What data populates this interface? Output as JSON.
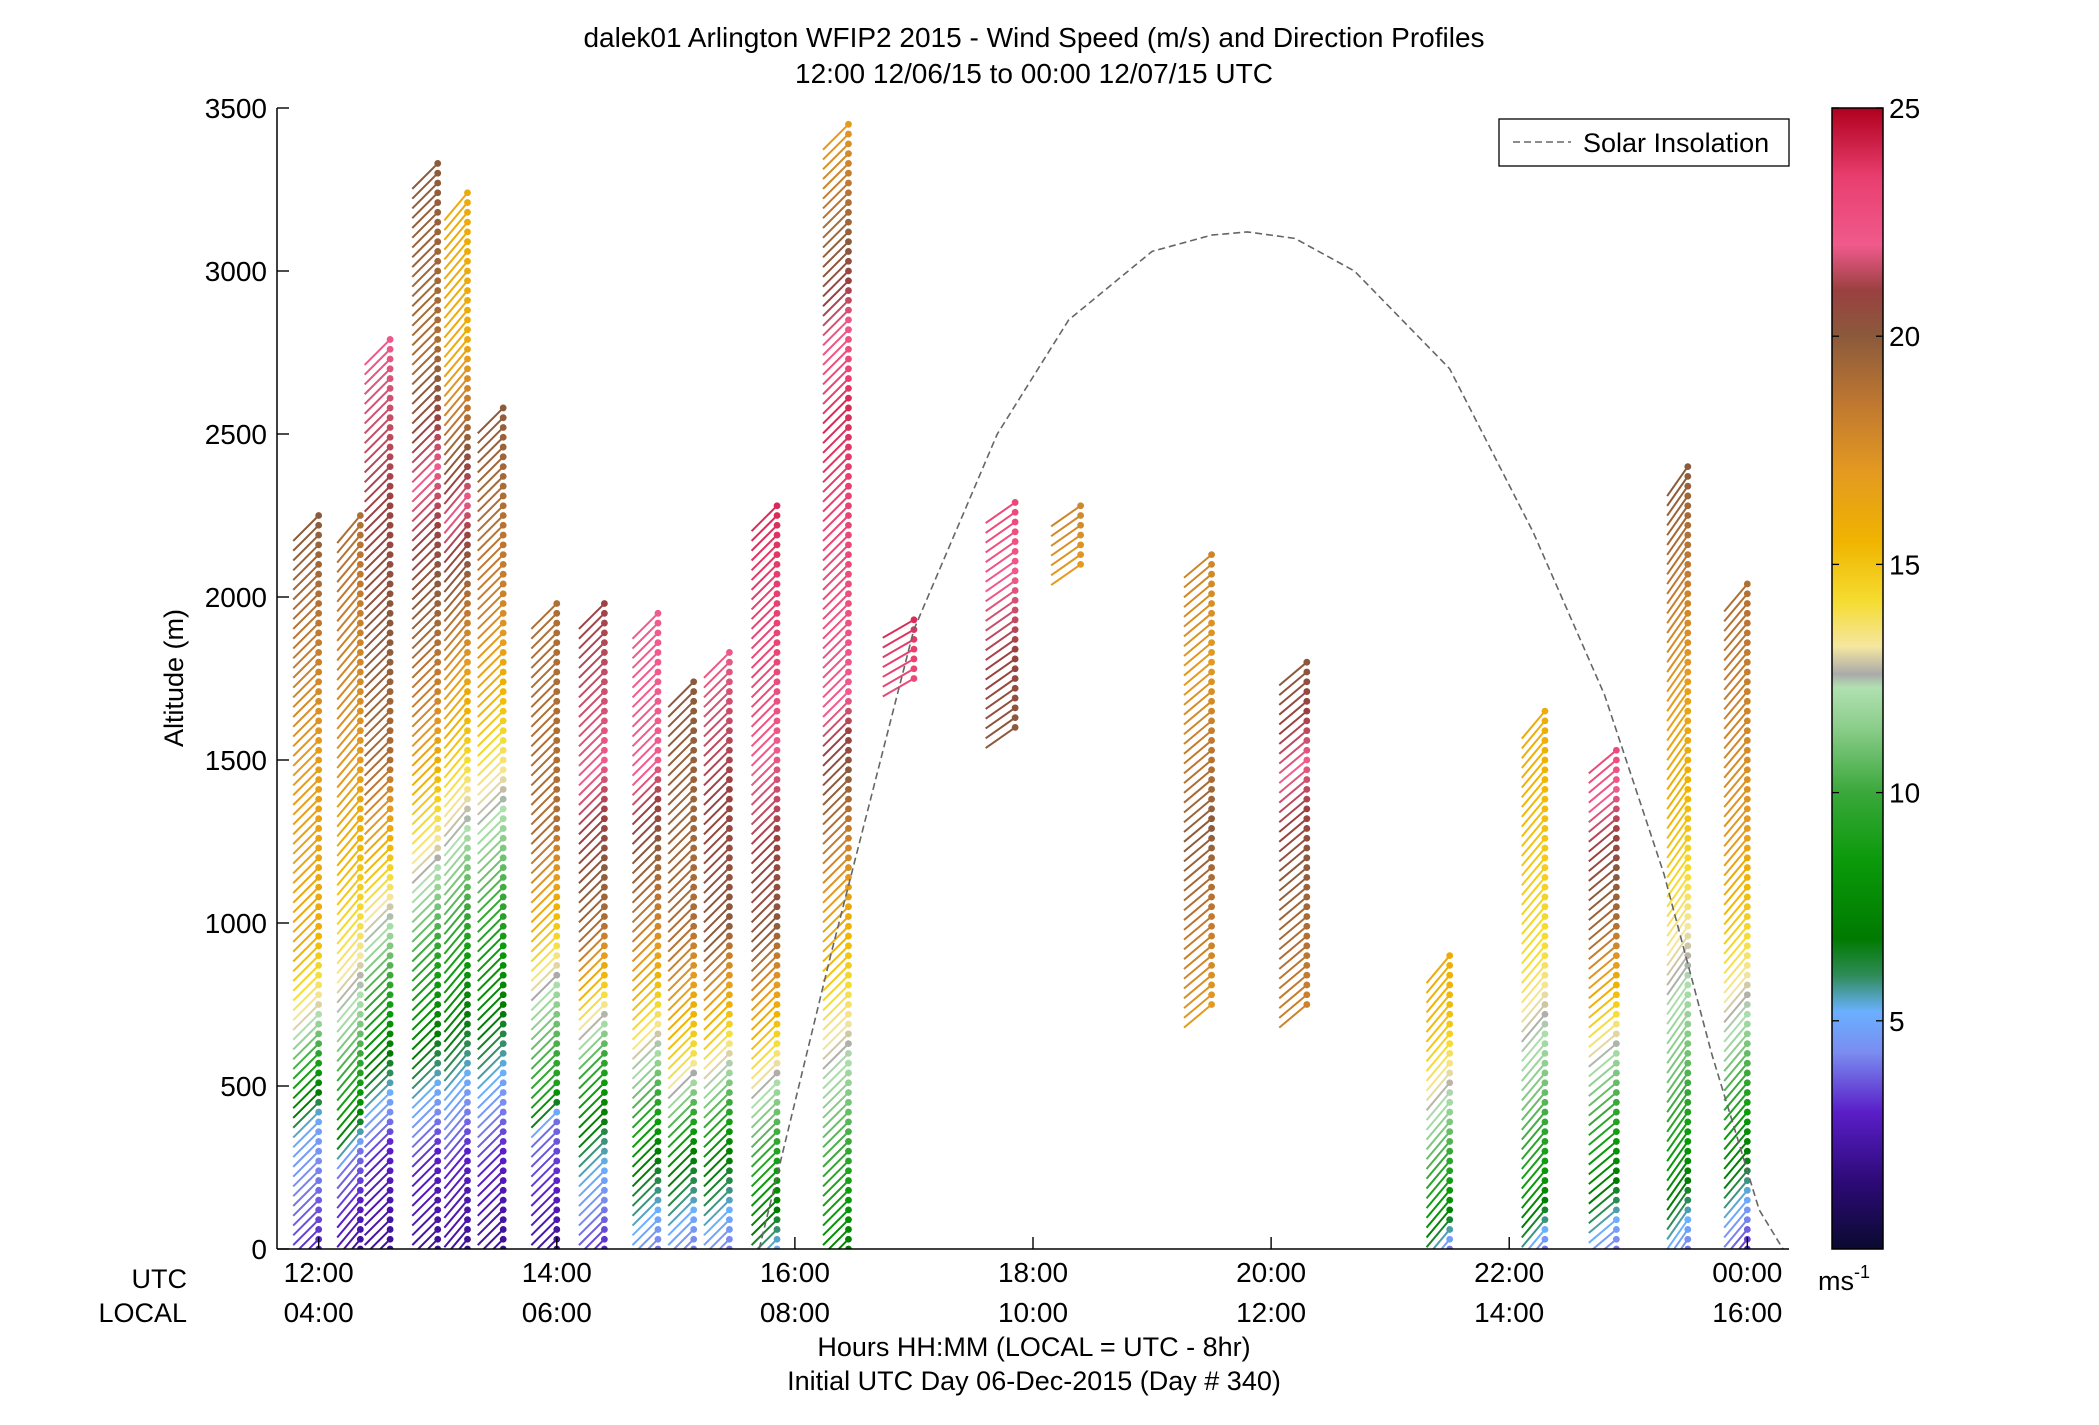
{
  "chart_data": {
    "type": "scatter",
    "plot_kind": "wind barb profiles (colored stick-and-dot vectors)",
    "title": "dalek01 Arlington WFIP2 2015 - Wind Speed (m/s) and Direction Profiles",
    "subtitle": "12:00 12/06/15 to 00:00 12/07/15  UTC",
    "ylabel": "Altitude (m)",
    "xlabel": "Hours HH:MM  (LOCAL = UTC - 8hr)",
    "xlabel2": "Initial UTC Day 06-Dec-2015 (Day # 340)",
    "x_axis_row_labels": {
      "utc": "UTC",
      "local": "LOCAL"
    },
    "xlim_hours_utc": [
      11.65,
      24.35
    ],
    "ylim": [
      0,
      3500
    ],
    "x_ticks": [
      {
        "hour": 12,
        "utc": "12:00",
        "local": "04:00"
      },
      {
        "hour": 14,
        "utc": "14:00",
        "local": "06:00"
      },
      {
        "hour": 16,
        "utc": "16:00",
        "local": "08:00"
      },
      {
        "hour": 18,
        "utc": "18:00",
        "local": "10:00"
      },
      {
        "hour": 20,
        "utc": "20:00",
        "local": "12:00"
      },
      {
        "hour": 22,
        "utc": "22:00",
        "local": "14:00"
      },
      {
        "hour": 24,
        "utc": "00:00",
        "local": "16:00"
      }
    ],
    "y_ticks": [
      0,
      500,
      1000,
      1500,
      2000,
      2500,
      3000,
      3500
    ],
    "legend": {
      "position": "top-right",
      "entries": [
        {
          "label": "Solar Insolation",
          "style": "dashed",
          "color": "#666666"
        }
      ]
    },
    "colorbar": {
      "unit": "ms",
      "unit_exponent": "-1",
      "min": 0,
      "max": 25,
      "ticks": [
        5,
        10,
        15,
        20,
        25
      ],
      "colors": [
        [
          0,
          "#0a0a30"
        ],
        [
          1.5,
          "#2d0a78"
        ],
        [
          3,
          "#5a1ec8"
        ],
        [
          4.3,
          "#7a8cf0"
        ],
        [
          5.2,
          "#6ab0ff"
        ],
        [
          6,
          "#2e8b57"
        ],
        [
          6.8,
          "#007a00"
        ],
        [
          8.5,
          "#0a9a0a"
        ],
        [
          10,
          "#3aa83a"
        ],
        [
          11.5,
          "#8fcf8f"
        ],
        [
          12.3,
          "#b0e0b0"
        ],
        [
          12.6,
          "#aaaaaa"
        ],
        [
          13.2,
          "#f5e6a0"
        ],
        [
          14.2,
          "#f5dc30"
        ],
        [
          15.5,
          "#f0b400"
        ],
        [
          17,
          "#e49a20"
        ],
        [
          18.5,
          "#c07830"
        ],
        [
          20,
          "#8b5a3c"
        ],
        [
          21,
          "#9a4040"
        ],
        [
          22,
          "#f05a8c"
        ],
        [
          23.5,
          "#e83e6e"
        ],
        [
          25,
          "#b0001e"
        ]
      ]
    },
    "solar_insolation": {
      "x": [
        15.7,
        16.3,
        17.0,
        17.7,
        18.3,
        19.0,
        19.5,
        19.8,
        20.2,
        20.7,
        21.5,
        22.2,
        22.8,
        23.3,
        23.7,
        24.1,
        24.3
      ],
      "y": [
        0,
        900,
        1900,
        2500,
        2850,
        3060,
        3110,
        3120,
        3100,
        3000,
        2700,
        2200,
        1700,
        1150,
        600,
        120,
        0
      ]
    },
    "series": [
      {
        "profile": "12:00 UTC",
        "time": 12.0,
        "alt_range": [
          0,
          2250
        ],
        "speed_profile": [
          [
            0,
            3
          ],
          [
            400,
            5
          ],
          [
            750,
            13
          ],
          [
            1000,
            16
          ],
          [
            1550,
            17
          ],
          [
            2250,
            20
          ]
        ],
        "dir": 225
      },
      {
        "profile": "12:20 UTC",
        "time": 12.35,
        "alt_range": [
          0,
          2250
        ],
        "speed_profile": [
          [
            0,
            2
          ],
          [
            300,
            4
          ],
          [
            450,
            8
          ],
          [
            750,
            12
          ],
          [
            1000,
            14
          ],
          [
            1500,
            17
          ],
          [
            2250,
            19
          ]
        ],
        "dir": 220
      },
      {
        "profile": "12:40 UTC",
        "time": 12.6,
        "alt_range": [
          0,
          2800
        ],
        "speed_profile": [
          [
            0,
            2
          ],
          [
            320,
            3
          ],
          [
            1500,
            19
          ],
          [
            2300,
            21
          ],
          [
            2800,
            22
          ]
        ],
        "dir": 225
      },
      {
        "profile": "13:00 UTC",
        "time": 13.0,
        "alt_range": [
          0,
          3350
        ],
        "speed_profile": [
          [
            0,
            2
          ],
          [
            300,
            3
          ],
          [
            1700,
            18
          ],
          [
            2400,
            22
          ],
          [
            2800,
            19
          ],
          [
            3350,
            20
          ]
        ],
        "dir": 225
      },
      {
        "profile": "13:20 UTC",
        "time": 13.25,
        "alt_range": [
          0,
          3250
        ],
        "speed_profile": [
          [
            0,
            2
          ],
          [
            300,
            3
          ],
          [
            1800,
            17
          ],
          [
            2300,
            22
          ],
          [
            2800,
            16
          ],
          [
            3250,
            16
          ]
        ],
        "dir": 220
      },
      {
        "profile": "13:40 UTC",
        "time": 13.55,
        "alt_range": [
          0,
          2600
        ],
        "speed_profile": [
          [
            0,
            2
          ],
          [
            300,
            3
          ],
          [
            2000,
            18
          ],
          [
            2600,
            20
          ]
        ],
        "dir": 225
      },
      {
        "profile": "14:00 UTC",
        "time": 14.0,
        "alt_range": [
          0,
          2000
        ],
        "speed_profile": [
          [
            0,
            2
          ],
          [
            400,
            4
          ],
          [
            500,
            9
          ],
          [
            800,
            12
          ],
          [
            1000,
            15
          ],
          [
            1300,
            19
          ],
          [
            2000,
            19
          ]
        ],
        "dir": 225
      },
      {
        "profile": "14:20 UTC",
        "time": 14.4,
        "alt_range": [
          0,
          2000
        ],
        "speed_profile": [
          [
            0,
            3
          ],
          [
            350,
            6
          ],
          [
            600,
            10
          ],
          [
            1000,
            19
          ],
          [
            1500,
            22
          ],
          [
            2000,
            21
          ]
        ],
        "dir": 225
      },
      {
        "profile": "14:50 UTC",
        "time": 14.85,
        "alt_range": [
          0,
          1950
        ],
        "speed_profile": [
          [
            0,
            4
          ],
          [
            300,
            7
          ],
          [
            600,
            12
          ],
          [
            1000,
            18
          ],
          [
            1500,
            22
          ],
          [
            1950,
            22
          ]
        ],
        "dir": 225
      },
      {
        "profile": "15:10 UTC",
        "time": 15.15,
        "alt_range": [
          0,
          1750
        ],
        "speed_profile": [
          [
            0,
            4
          ],
          [
            300,
            7
          ],
          [
            600,
            14
          ],
          [
            1000,
            19
          ],
          [
            1750,
            20
          ]
        ],
        "dir": 225
      },
      {
        "profile": "15:30 UTC",
        "time": 15.45,
        "alt_range": [
          0,
          1850
        ],
        "speed_profile": [
          [
            0,
            4
          ],
          [
            300,
            7
          ],
          [
            600,
            13
          ],
          [
            1000,
            20
          ],
          [
            1850,
            22
          ]
        ],
        "dir": 225
      },
      {
        "profile": "15:50 UTC",
        "time": 15.85,
        "alt_range": [
          0,
          2300
        ],
        "speed_profile": [
          [
            0,
            5
          ],
          [
            200,
            8
          ],
          [
            500,
            12
          ],
          [
            1000,
            20
          ],
          [
            1800,
            23
          ],
          [
            2300,
            24
          ]
        ],
        "dir": 225
      },
      {
        "profile": "16:30 UTC",
        "time": 16.45,
        "alt_range": [
          0,
          3450
        ],
        "speed_profile": [
          [
            0,
            7
          ],
          [
            100,
            8
          ],
          [
            1700,
            22
          ],
          [
            2600,
            24
          ],
          [
            3450,
            17
          ]
        ],
        "dir": 225
      },
      {
        "profile": "17:00 UTC",
        "time": 17.0,
        "alt_range": [
          1750,
          1950
        ],
        "speed_profile": [
          [
            1750,
            23
          ],
          [
            1950,
            24
          ]
        ],
        "dir": 240
      },
      {
        "profile": "17:50 UTC",
        "time": 17.85,
        "alt_range": [
          1600,
          2300
        ],
        "speed_profile": [
          [
            1600,
            20
          ],
          [
            2300,
            23
          ]
        ],
        "dir": 235
      },
      {
        "profile": "18:30 UTC",
        "time": 18.4,
        "alt_range": [
          2100,
          2300
        ],
        "speed_profile": [
          [
            2100,
            17
          ],
          [
            2300,
            18
          ]
        ],
        "dir": 235
      },
      {
        "profile": "19:30 UTC",
        "time": 19.5,
        "alt_range": [
          750,
          2150
        ],
        "speed_profile": [
          [
            750,
            17
          ],
          [
            1300,
            20
          ],
          [
            1800,
            17
          ],
          [
            2150,
            18
          ]
        ],
        "dir": 230
      },
      {
        "profile": "20:20 UTC",
        "time": 20.3,
        "alt_range": [
          750,
          1800
        ],
        "speed_profile": [
          [
            750,
            18
          ],
          [
            1200,
            20
          ],
          [
            1500,
            22
          ],
          [
            1800,
            20
          ]
        ],
        "dir": 230
      },
      {
        "profile": "21:30 UTC",
        "time": 21.5,
        "alt_range": [
          0,
          900
        ],
        "speed_profile": [
          [
            0,
            4
          ],
          [
            150,
            8
          ],
          [
            450,
            12
          ],
          [
            700,
            15
          ],
          [
            900,
            16
          ]
        ],
        "dir": 220
      },
      {
        "profile": "22:20 UTC",
        "time": 22.3,
        "alt_range": [
          0,
          1650
        ],
        "speed_profile": [
          [
            0,
            4
          ],
          [
            200,
            8
          ],
          [
            500,
            11
          ],
          [
            900,
            14
          ],
          [
            1650,
            16
          ]
        ],
        "dir": 220
      },
      {
        "profile": "22:50 UTC",
        "time": 22.9,
        "alt_range": [
          0,
          1550
        ],
        "speed_profile": [
          [
            0,
            4
          ],
          [
            300,
            8
          ],
          [
            600,
            12
          ],
          [
            1000,
            19
          ],
          [
            1550,
            23
          ]
        ],
        "dir": 230
      },
      {
        "profile": "23:30 UTC",
        "time": 23.5,
        "alt_range": [
          0,
          2400
        ],
        "speed_profile": [
          [
            0,
            4
          ],
          [
            300,
            8
          ],
          [
            600,
            11
          ],
          [
            1300,
            15
          ],
          [
            2000,
            18
          ],
          [
            2400,
            20
          ]
        ],
        "dir": 215
      },
      {
        "profile": "00:00 UTC",
        "time": 24.0,
        "alt_range": [
          0,
          2050
        ],
        "speed_profile": [
          [
            0,
            3
          ],
          [
            300,
            7
          ],
          [
            700,
            12
          ],
          [
            1300,
            17
          ],
          [
            2050,
            19
          ]
        ],
        "dir": 220
      }
    ]
  }
}
